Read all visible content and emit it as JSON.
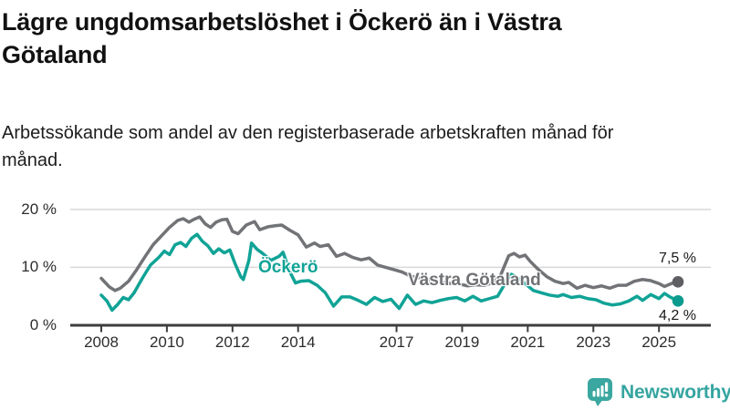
{
  "header": {
    "title": "Lägre ungdomsarbetslöshet i Öckerö än i Västra Götaland",
    "subtitle": "Arbetssökande som andel av den registerbaserade arbetskraften månad för månad."
  },
  "footer": {
    "brand": "Newsworthy"
  },
  "chart_data": {
    "type": "line",
    "title": "Lägre ungdomsarbetslöshet i Öckerö än i Västra Götaland",
    "subtitle": "Arbetssökande som andel av den registerbaserade arbetskraften månad för månad.",
    "xlabel": "",
    "ylabel": "",
    "x_range": [
      2007.05,
      2026.55
    ],
    "ylim": [
      0,
      21
    ],
    "grid": "horizontal",
    "legend_position": "inline-labels",
    "axis_color": "#3E3E40",
    "gridline_color": "#D8D8D8",
    "x_ticks": [
      {
        "value": 2008,
        "label": "2008"
      },
      {
        "value": 2010,
        "label": "2010"
      },
      {
        "value": 2012,
        "label": "2012"
      },
      {
        "value": 2014,
        "label": "2014"
      },
      {
        "value": 2017,
        "label": "2017"
      },
      {
        "value": 2019,
        "label": "2019"
      },
      {
        "value": 2021,
        "label": "2021"
      },
      {
        "value": 2023,
        "label": "2023"
      },
      {
        "value": 2025,
        "label": "2025"
      }
    ],
    "y_ticks": [
      {
        "value": 0,
        "label": "0 %"
      },
      {
        "value": 10,
        "label": "10 %"
      },
      {
        "value": 20,
        "label": "20 %"
      }
    ],
    "series": [
      {
        "name": "Västra Götaland",
        "color": "#717376",
        "dot_color": "#5D5F63",
        "end_label": "7,5 %",
        "end_value": 7.5,
        "points": [
          [
            2008.0,
            8.1
          ],
          [
            2008.25,
            6.6
          ],
          [
            2008.42,
            6.0
          ],
          [
            2008.58,
            6.4
          ],
          [
            2008.83,
            7.6
          ],
          [
            2009.08,
            9.6
          ],
          [
            2009.33,
            11.8
          ],
          [
            2009.58,
            13.9
          ],
          [
            2009.83,
            15.4
          ],
          [
            2010.08,
            16.9
          ],
          [
            2010.33,
            18.1
          ],
          [
            2010.5,
            18.4
          ],
          [
            2010.67,
            17.8
          ],
          [
            2010.83,
            18.3
          ],
          [
            2011.0,
            18.7
          ],
          [
            2011.17,
            17.5
          ],
          [
            2011.33,
            16.9
          ],
          [
            2011.5,
            17.8
          ],
          [
            2011.67,
            18.2
          ],
          [
            2011.83,
            18.3
          ],
          [
            2012.0,
            16.2
          ],
          [
            2012.17,
            15.8
          ],
          [
            2012.42,
            17.3
          ],
          [
            2012.67,
            17.9
          ],
          [
            2012.83,
            16.5
          ],
          [
            2013.08,
            17.0
          ],
          [
            2013.33,
            17.2
          ],
          [
            2013.5,
            17.3
          ],
          [
            2013.75,
            16.4
          ],
          [
            2014.0,
            15.6
          ],
          [
            2014.25,
            13.5
          ],
          [
            2014.5,
            14.2
          ],
          [
            2014.67,
            13.6
          ],
          [
            2014.92,
            13.9
          ],
          [
            2015.17,
            11.9
          ],
          [
            2015.42,
            12.4
          ],
          [
            2015.67,
            11.7
          ],
          [
            2015.92,
            11.3
          ],
          [
            2016.17,
            11.6
          ],
          [
            2016.42,
            10.4
          ],
          [
            2016.67,
            10.0
          ],
          [
            2016.92,
            9.6
          ],
          [
            2017.17,
            9.2
          ],
          [
            2017.42,
            8.5
          ],
          [
            2017.67,
            8.2
          ],
          [
            2017.92,
            8.0
          ],
          [
            2018.17,
            7.6
          ],
          [
            2018.42,
            7.4
          ],
          [
            2018.67,
            7.2
          ],
          [
            2018.92,
            7.1
          ],
          [
            2019.17,
            6.8
          ],
          [
            2019.42,
            7.0
          ],
          [
            2019.67,
            6.9
          ],
          [
            2019.92,
            7.3
          ],
          [
            2020.17,
            8.6
          ],
          [
            2020.42,
            12.0
          ],
          [
            2020.58,
            12.4
          ],
          [
            2020.75,
            11.8
          ],
          [
            2020.92,
            12.1
          ],
          [
            2021.08,
            11.0
          ],
          [
            2021.33,
            9.6
          ],
          [
            2021.58,
            8.4
          ],
          [
            2021.83,
            7.6
          ],
          [
            2022.08,
            7.2
          ],
          [
            2022.25,
            7.4
          ],
          [
            2022.5,
            6.4
          ],
          [
            2022.75,
            6.9
          ],
          [
            2023.0,
            6.5
          ],
          [
            2023.25,
            6.8
          ],
          [
            2023.5,
            6.4
          ],
          [
            2023.75,
            6.9
          ],
          [
            2024.0,
            6.9
          ],
          [
            2024.25,
            7.6
          ],
          [
            2024.5,
            7.9
          ],
          [
            2024.75,
            7.7
          ],
          [
            2025.0,
            7.2
          ],
          [
            2025.17,
            6.7
          ],
          [
            2025.42,
            7.3
          ],
          [
            2025.58,
            7.5
          ]
        ]
      },
      {
        "name": "Öckerö",
        "color": "#10A396",
        "dot_color": "#0B9A8E",
        "end_label": "4,2 %",
        "end_value": 4.2,
        "points": [
          [
            2008.0,
            5.2
          ],
          [
            2008.17,
            4.2
          ],
          [
            2008.33,
            2.6
          ],
          [
            2008.5,
            3.6
          ],
          [
            2008.67,
            4.8
          ],
          [
            2008.83,
            4.4
          ],
          [
            2009.0,
            5.6
          ],
          [
            2009.25,
            8.1
          ],
          [
            2009.5,
            10.4
          ],
          [
            2009.75,
            11.7
          ],
          [
            2009.92,
            12.8
          ],
          [
            2010.08,
            12.2
          ],
          [
            2010.25,
            13.9
          ],
          [
            2010.42,
            14.3
          ],
          [
            2010.58,
            13.6
          ],
          [
            2010.75,
            15.0
          ],
          [
            2010.92,
            15.7
          ],
          [
            2011.08,
            14.5
          ],
          [
            2011.25,
            13.7
          ],
          [
            2011.42,
            12.4
          ],
          [
            2011.58,
            13.2
          ],
          [
            2011.75,
            12.5
          ],
          [
            2011.92,
            13.0
          ],
          [
            2012.08,
            10.6
          ],
          [
            2012.25,
            8.4
          ],
          [
            2012.33,
            7.9
          ],
          [
            2012.5,
            11.2
          ],
          [
            2012.58,
            14.2
          ],
          [
            2012.75,
            13.1
          ],
          [
            2012.92,
            12.4
          ],
          [
            2013.17,
            11.2
          ],
          [
            2013.42,
            11.9
          ],
          [
            2013.54,
            12.6
          ],
          [
            2013.75,
            9.2
          ],
          [
            2013.92,
            7.3
          ],
          [
            2014.08,
            7.6
          ],
          [
            2014.33,
            7.7
          ],
          [
            2014.58,
            6.9
          ],
          [
            2014.83,
            5.6
          ],
          [
            2015.08,
            3.3
          ],
          [
            2015.33,
            4.9
          ],
          [
            2015.58,
            4.9
          ],
          [
            2015.83,
            4.3
          ],
          [
            2016.08,
            3.6
          ],
          [
            2016.33,
            4.8
          ],
          [
            2016.58,
            4.1
          ],
          [
            2016.83,
            4.5
          ],
          [
            2017.08,
            2.9
          ],
          [
            2017.33,
            5.2
          ],
          [
            2017.58,
            3.6
          ],
          [
            2017.83,
            4.2
          ],
          [
            2018.08,
            3.9
          ],
          [
            2018.33,
            4.3
          ],
          [
            2018.58,
            4.6
          ],
          [
            2018.83,
            4.8
          ],
          [
            2019.08,
            4.2
          ],
          [
            2019.33,
            5.0
          ],
          [
            2019.58,
            4.2
          ],
          [
            2019.83,
            4.6
          ],
          [
            2020.08,
            5.0
          ],
          [
            2020.33,
            7.4
          ],
          [
            2020.5,
            8.8
          ],
          [
            2020.67,
            8.3
          ],
          [
            2020.92,
            7.2
          ],
          [
            2021.17,
            6.0
          ],
          [
            2021.42,
            5.6
          ],
          [
            2021.67,
            5.2
          ],
          [
            2021.92,
            5.0
          ],
          [
            2022.08,
            5.3
          ],
          [
            2022.33,
            4.8
          ],
          [
            2022.58,
            5.0
          ],
          [
            2022.83,
            4.6
          ],
          [
            2023.08,
            4.4
          ],
          [
            2023.33,
            3.8
          ],
          [
            2023.58,
            3.5
          ],
          [
            2023.83,
            3.7
          ],
          [
            2024.08,
            4.2
          ],
          [
            2024.33,
            5.0
          ],
          [
            2024.5,
            4.3
          ],
          [
            2024.75,
            5.3
          ],
          [
            2025.0,
            4.6
          ],
          [
            2025.17,
            5.5
          ],
          [
            2025.33,
            4.9
          ],
          [
            2025.58,
            4.2
          ]
        ]
      }
    ]
  }
}
